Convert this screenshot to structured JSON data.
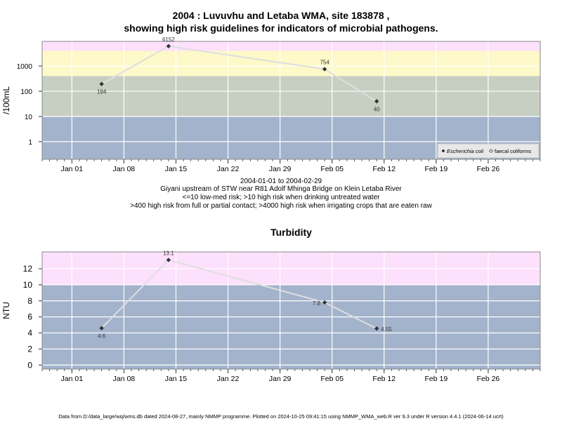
{
  "header": {
    "title_line1": "2004 : Luvuvhu and Letaba WMA, site 183878 ,",
    "title_line2": "showing high risk guidelines for indicators of microbial pathogens."
  },
  "notes": {
    "date_range": "2004-01-01 to 2004-02-29",
    "site_desc": "Giyani upstream of STW near R81 Adolf Mhinga Bridge on Klein Letaba River",
    "guideline_1": "<=10 low-med risk; >10 high risk when drinking untreated water",
    "guideline_2": ">400 high risk from full or partial contact; >4000 high risk when irrigating crops that are eaten raw"
  },
  "footer": {
    "text": "Data from D:/data_large/wq/wms.db dated 2024-08-27, mainly NMMP programme. Plotted on 2024-10-25 09:41:15 using NMMP_WMA_web.R ver 9.3 under R version 4.4.1 (2024-06-14 ucrt)"
  },
  "chart_data": [
    {
      "type": "line",
      "title": "",
      "ylabel": "/100mL",
      "yscale": "log",
      "ylim": [
        0.2,
        9500
      ],
      "xlim": [
        "2003-12-28",
        "2004-03-04"
      ],
      "x_tick_labels": [
        "Jan 01",
        "Jan 08",
        "Jan 15",
        "Jan 22",
        "Jan 29",
        "Feb 05",
        "Feb 12",
        "Feb 19",
        "Feb 26"
      ],
      "x_ticks": [
        "2004-01-01",
        "2004-01-08",
        "2004-01-15",
        "2004-01-22",
        "2004-01-29",
        "2004-02-05",
        "2004-02-12",
        "2004-02-19",
        "2004-02-26"
      ],
      "y_ticks": [
        1,
        10,
        100,
        1000
      ],
      "y_tick_labels": [
        "1",
        "10",
        "100",
        "1000"
      ],
      "grid": true,
      "bands": [
        {
          "from": 0.2,
          "to": 10,
          "color": "#a3b3cc"
        },
        {
          "from": 10,
          "to": 400,
          "color": "#c6cfc2"
        },
        {
          "from": 400,
          "to": 4000,
          "color": "#fdf9c8"
        },
        {
          "from": 4000,
          "to": 9500,
          "color": "#fde0fc"
        }
      ],
      "series": [
        {
          "name": "Escherichia coli",
          "x": [
            "2004-01-05",
            "2004-01-14",
            "2004-02-04",
            "2004-02-11"
          ],
          "y": [
            194,
            6152,
            754,
            40
          ],
          "labels": [
            "194",
            "6152",
            "754",
            "40"
          ],
          "label_pos": [
            "below",
            "above",
            "above",
            "below"
          ],
          "marker": "diamond",
          "marker_color": "#333333",
          "line_color": "#dedede"
        }
      ],
      "legend": {
        "position": "bottom-right",
        "entries": [
          {
            "label": "Escherichia coli",
            "symbol": "diamond-filled"
          },
          {
            "label": "faecal coliforms",
            "symbol": "diamond-open"
          }
        ]
      }
    },
    {
      "type": "line",
      "title": "Turbidity",
      "ylabel": "NTU",
      "yscale": "linear",
      "ylim": [
        -0.5,
        14.1
      ],
      "xlim": [
        "2003-12-28",
        "2004-03-04"
      ],
      "x_tick_labels": [
        "Jan 01",
        "Jan 08",
        "Jan 15",
        "Jan 22",
        "Jan 29",
        "Feb 05",
        "Feb 12",
        "Feb 19",
        "Feb 26"
      ],
      "x_ticks": [
        "2004-01-01",
        "2004-01-08",
        "2004-01-15",
        "2004-01-22",
        "2004-01-29",
        "2004-02-05",
        "2004-02-12",
        "2004-02-19",
        "2004-02-26"
      ],
      "y_ticks": [
        0,
        2,
        4,
        6,
        8,
        10,
        12
      ],
      "y_tick_labels": [
        "0",
        "2",
        "4",
        "6",
        "8",
        "10",
        "12"
      ],
      "grid": true,
      "bands": [
        {
          "from": -0.5,
          "to": 10,
          "color": "#a3b3cc"
        },
        {
          "from": 10,
          "to": 14.1,
          "color": "#fde0fc"
        }
      ],
      "series": [
        {
          "x": [
            "2004-01-05",
            "2004-01-14",
            "2004-02-04",
            "2004-02-11"
          ],
          "y": [
            4.6,
            13.1,
            7.8,
            4.55
          ],
          "labels": [
            "4.6",
            "13.1",
            "7.8",
            "4.55"
          ],
          "label_pos": [
            "below",
            "above",
            "left",
            "right"
          ],
          "marker": "diamond",
          "marker_color": "#333333",
          "line_color": "#dedede"
        }
      ]
    }
  ]
}
